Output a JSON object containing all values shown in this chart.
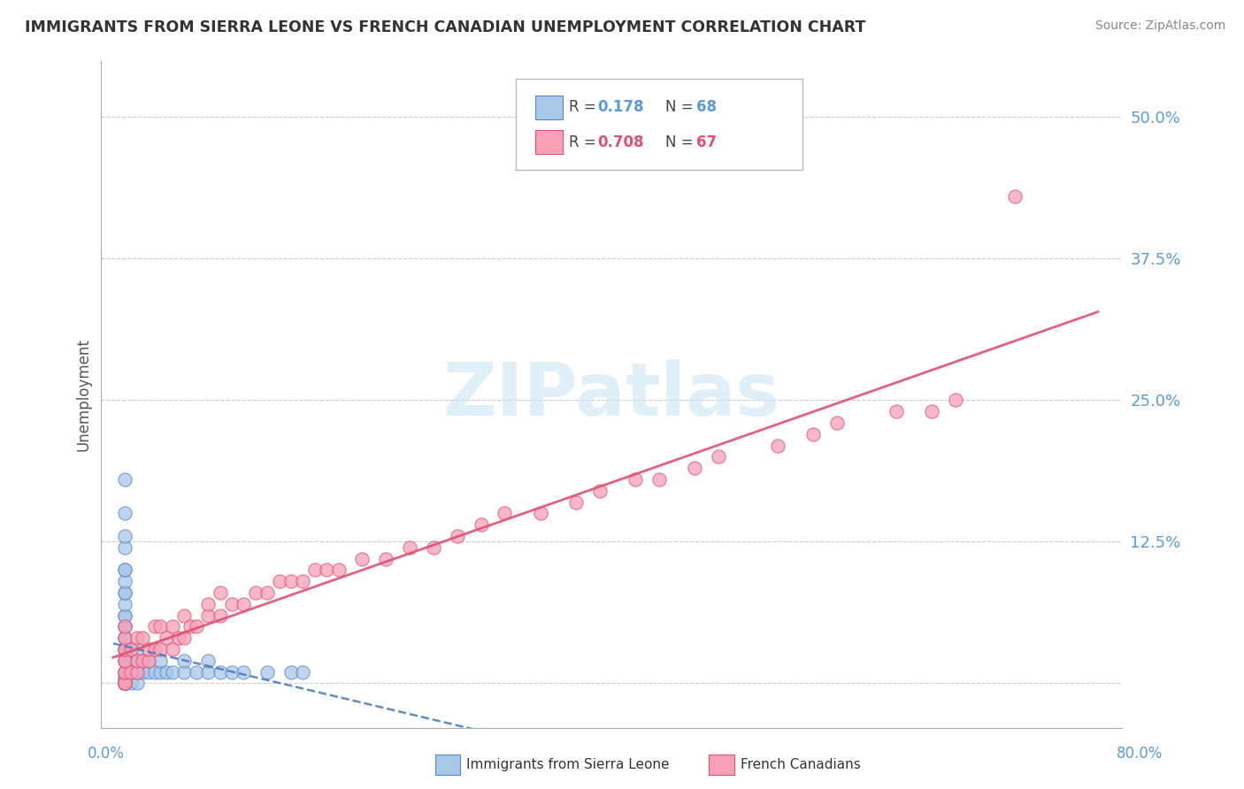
{
  "title": "IMMIGRANTS FROM SIERRA LEONE VS FRENCH CANADIAN UNEMPLOYMENT CORRELATION CHART",
  "source": "Source: ZipAtlas.com",
  "ylabel": "Unemployment",
  "yticks": [
    0.0,
    0.125,
    0.25,
    0.375,
    0.5
  ],
  "ytick_labels": [
    "",
    "12.5%",
    "25.0%",
    "37.5%",
    "50.0%"
  ],
  "xlim": [
    -0.02,
    0.84
  ],
  "ylim": [
    -0.04,
    0.55
  ],
  "legend_r1": "R = ",
  "legend_v1": "0.178",
  "legend_n1_label": "N = ",
  "legend_n1_val": "68",
  "legend_r2": "R = ",
  "legend_v2": "0.708",
  "legend_n2_label": "N = ",
  "legend_n2_val": "67",
  "legend_label1": "Immigrants from Sierra Leone",
  "legend_label2": "French Canadians",
  "color_blue": "#a8c8e8",
  "color_pink": "#f8a0b8",
  "color_blue_edge": "#5588cc",
  "color_pink_edge": "#e05070",
  "color_blue_line": "#4477bb",
  "color_pink_line": "#e05070",
  "color_axis": "#5b9bd5",
  "watermark_color": "#c8e4f5",
  "sl_x": [
    0.0,
    0.0,
    0.0,
    0.0,
    0.0,
    0.0,
    0.0,
    0.0,
    0.0,
    0.0,
    0.0,
    0.0,
    0.0,
    0.0,
    0.0,
    0.0,
    0.0,
    0.0,
    0.0,
    0.0,
    0.0,
    0.0,
    0.0,
    0.0,
    0.0,
    0.0,
    0.0,
    0.0,
    0.0,
    0.0,
    0.0,
    0.0,
    0.0,
    0.0,
    0.0,
    0.0,
    0.0,
    0.0,
    0.0,
    0.0,
    0.005,
    0.005,
    0.005,
    0.005,
    0.01,
    0.01,
    0.01,
    0.01,
    0.015,
    0.015,
    0.02,
    0.02,
    0.025,
    0.03,
    0.03,
    0.035,
    0.04,
    0.05,
    0.05,
    0.06,
    0.07,
    0.07,
    0.08,
    0.09,
    0.1,
    0.12,
    0.14,
    0.15
  ],
  "sl_y": [
    0.0,
    0.0,
    0.0,
    0.0,
    0.0,
    0.0,
    0.0,
    0.0,
    0.0,
    0.0,
    0.0,
    0.0,
    0.0,
    0.0,
    0.0,
    0.0,
    0.005,
    0.005,
    0.01,
    0.01,
    0.02,
    0.02,
    0.03,
    0.03,
    0.04,
    0.04,
    0.05,
    0.05,
    0.06,
    0.06,
    0.07,
    0.08,
    0.08,
    0.09,
    0.1,
    0.1,
    0.12,
    0.13,
    0.15,
    0.18,
    0.0,
    0.01,
    0.02,
    0.03,
    0.0,
    0.01,
    0.02,
    0.03,
    0.01,
    0.02,
    0.01,
    0.02,
    0.01,
    0.01,
    0.02,
    0.01,
    0.01,
    0.01,
    0.02,
    0.01,
    0.01,
    0.02,
    0.01,
    0.01,
    0.01,
    0.01,
    0.01,
    0.01
  ],
  "fc_x": [
    0.0,
    0.0,
    0.0,
    0.0,
    0.0,
    0.0,
    0.0,
    0.0,
    0.0,
    0.0,
    0.0,
    0.005,
    0.005,
    0.01,
    0.01,
    0.01,
    0.015,
    0.015,
    0.02,
    0.02,
    0.025,
    0.025,
    0.03,
    0.03,
    0.035,
    0.04,
    0.04,
    0.045,
    0.05,
    0.05,
    0.055,
    0.06,
    0.07,
    0.07,
    0.08,
    0.08,
    0.09,
    0.1,
    0.11,
    0.12,
    0.13,
    0.14,
    0.15,
    0.16,
    0.17,
    0.18,
    0.2,
    0.22,
    0.24,
    0.26,
    0.28,
    0.3,
    0.32,
    0.35,
    0.38,
    0.4,
    0.43,
    0.45,
    0.48,
    0.5,
    0.55,
    0.58,
    0.6,
    0.65,
    0.68,
    0.7,
    0.75
  ],
  "fc_y": [
    0.0,
    0.0,
    0.0,
    0.01,
    0.01,
    0.02,
    0.02,
    0.03,
    0.03,
    0.04,
    0.05,
    0.01,
    0.03,
    0.01,
    0.02,
    0.04,
    0.02,
    0.04,
    0.02,
    0.03,
    0.03,
    0.05,
    0.03,
    0.05,
    0.04,
    0.03,
    0.05,
    0.04,
    0.04,
    0.06,
    0.05,
    0.05,
    0.06,
    0.07,
    0.06,
    0.08,
    0.07,
    0.07,
    0.08,
    0.08,
    0.09,
    0.09,
    0.09,
    0.1,
    0.1,
    0.1,
    0.11,
    0.11,
    0.12,
    0.12,
    0.13,
    0.14,
    0.15,
    0.15,
    0.16,
    0.17,
    0.18,
    0.18,
    0.19,
    0.2,
    0.21,
    0.22,
    0.23,
    0.24,
    0.24,
    0.25,
    0.43
  ]
}
